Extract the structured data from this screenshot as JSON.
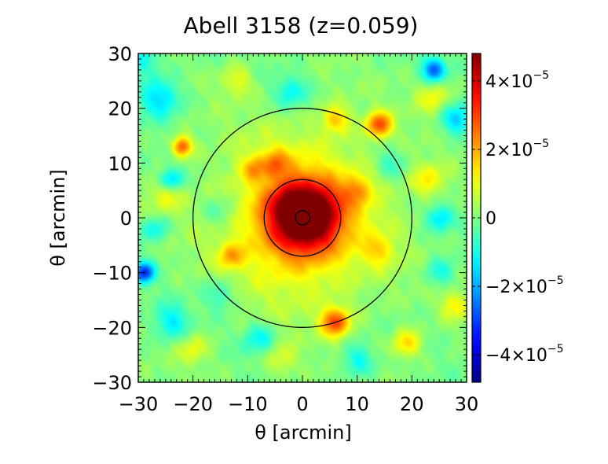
{
  "chart_data": {
    "type": "heatmap",
    "title": "Abell 3158 (z=0.059)",
    "xlabel": "θ [arcmin]",
    "ylabel": "θ [arcmin]",
    "xlim": [
      -30,
      30
    ],
    "ylim": [
      -30,
      30
    ],
    "x_ticks": [
      "−30",
      "−20",
      "−10",
      "0",
      "10",
      "20",
      "30"
    ],
    "y_ticks": [
      "−30",
      "−20",
      "−10",
      "0",
      "10",
      "20",
      "30"
    ],
    "x_tick_values": [
      -30,
      -20,
      -10,
      0,
      10,
      20,
      30
    ],
    "y_tick_values": [
      -30,
      -20,
      -10,
      0,
      10,
      20,
      30
    ],
    "colorbar": {
      "range": [
        -4.8e-05,
        4.8e-05
      ],
      "colormap": "jet",
      "ticks": [
        {
          "value": 4e-05,
          "mantissa": "4",
          "times": "×10",
          "exp": "−5"
        },
        {
          "value": 2e-05,
          "mantissa": "2",
          "times": "×10",
          "exp": "−5"
        },
        {
          "value": 0,
          "mantissa": "0",
          "times": "",
          "exp": ""
        },
        {
          "value": -2e-05,
          "mantissa": "−2",
          "times": "×10",
          "exp": "−5"
        },
        {
          "value": -4e-05,
          "mantissa": "−4",
          "times": "×10",
          "exp": "−5"
        }
      ]
    },
    "circles_arcmin": [
      {
        "cx": 0,
        "cy": 0,
        "r": 1.3
      },
      {
        "cx": 0,
        "cy": 0,
        "r": 7
      },
      {
        "cx": 0,
        "cy": 0,
        "r": 20
      }
    ],
    "blobs": [
      {
        "x": 0,
        "y": 0,
        "amp": 4.4e-05,
        "s": 4.5
      },
      {
        "x": 2,
        "y": -0.5,
        "amp": 1.2e-05,
        "s": 2.0
      },
      {
        "x": -2.5,
        "y": 2.5,
        "amp": 1e-05,
        "s": 2.2
      },
      {
        "x": 4,
        "y": 3,
        "amp": 8e-06,
        "s": 2.0
      },
      {
        "x": 0,
        "y": 0,
        "amp": 1.8e-05,
        "s": 10
      },
      {
        "x": -22,
        "y": 13,
        "amp": 2.8e-05,
        "s": 1.3
      },
      {
        "x": 14,
        "y": 17,
        "amp": 2.8e-05,
        "s": 1.6
      },
      {
        "x": 6,
        "y": -19,
        "amp": 2.8e-05,
        "s": 1.8
      },
      {
        "x": 6,
        "y": 18,
        "amp": 1.6e-05,
        "s": 1.7
      },
      {
        "x": -13,
        "y": -7,
        "amp": 1.5e-05,
        "s": 1.6
      },
      {
        "x": 19,
        "y": -23,
        "amp": 1.6e-05,
        "s": 1.8
      },
      {
        "x": -5,
        "y": 10,
        "amp": 1.4e-05,
        "s": 1.8
      },
      {
        "x": 10,
        "y": 5,
        "amp": 1.4e-05,
        "s": 1.8
      },
      {
        "x": -9,
        "y": 9,
        "amp": 1.2e-05,
        "s": 1.6
      },
      {
        "x": 23,
        "y": 7,
        "amp": 1.2e-05,
        "s": 2.2
      },
      {
        "x": -25,
        "y": 4,
        "amp": 1e-05,
        "s": 2.0
      },
      {
        "x": 28,
        "y": -16,
        "amp": 1.2e-05,
        "s": 1.8
      },
      {
        "x": -20,
        "y": -24,
        "amp": 1e-05,
        "s": 2.0
      },
      {
        "x": -4,
        "y": -26,
        "amp": 9e-06,
        "s": 2.0
      },
      {
        "x": 24,
        "y": 22,
        "amp": 1.1e-05,
        "s": 2.2
      },
      {
        "x": -12,
        "y": 25,
        "amp": 1e-05,
        "s": 2.0
      },
      {
        "x": 14,
        "y": -6,
        "amp": 1.1e-05,
        "s": 1.8
      },
      {
        "x": -29,
        "y": -10,
        "amp": -3.2e-05,
        "s": 1.3
      },
      {
        "x": 24,
        "y": 27,
        "amp": -2.6e-05,
        "s": 1.5
      },
      {
        "x": -24,
        "y": 7,
        "amp": -1.8e-05,
        "s": 1.4
      },
      {
        "x": -26,
        "y": 22,
        "amp": -1.6e-05,
        "s": 2.5
      },
      {
        "x": 28,
        "y": 18,
        "amp": -1.6e-05,
        "s": 2.0
      },
      {
        "x": 25,
        "y": 0,
        "amp": -1.5e-05,
        "s": 1.6
      },
      {
        "x": -24,
        "y": -19,
        "amp": -1.3e-05,
        "s": 2.2
      },
      {
        "x": -2,
        "y": 23,
        "amp": -1.2e-05,
        "s": 2.0
      },
      {
        "x": -8,
        "y": -22,
        "amp": -1.2e-05,
        "s": 2.0
      },
      {
        "x": 10,
        "y": -26,
        "amp": -1.2e-05,
        "s": 2.0
      },
      {
        "x": -29,
        "y": 29,
        "amp": -1.2e-05,
        "s": 2.0
      },
      {
        "x": -15,
        "y": 1,
        "amp": -8e-06,
        "s": 2.0
      },
      {
        "x": 16,
        "y": 10,
        "amp": -8e-06,
        "s": 2.0
      },
      {
        "x": 25,
        "y": -10,
        "amp": -1e-05,
        "s": 1.8
      },
      {
        "x": -15,
        "y": -14,
        "amp": -9e-06,
        "s": 2.0
      },
      {
        "x": -27,
        "y": -2,
        "amp": -1.2e-05,
        "s": 1.6
      }
    ]
  }
}
